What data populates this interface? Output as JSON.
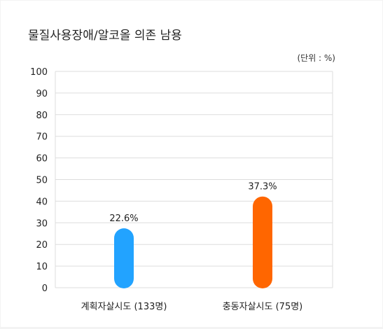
{
  "chart_data": {
    "type": "bar",
    "title": "물질사용장애/알코올 의존 남용",
    "unit_label": "(단위 : %)",
    "categories": [
      "계획자살시도 (133명)",
      "충동자살시도 (75명)"
    ],
    "values": [
      22.6,
      37.3
    ],
    "data_labels": [
      "22.6%",
      "37.3%"
    ],
    "colors": [
      "#22a3ff",
      "#ff6600"
    ],
    "ylim": [
      0,
      100
    ],
    "yticks": [
      0,
      10,
      20,
      30,
      40,
      50,
      60,
      70,
      80,
      90,
      100
    ],
    "grid": true,
    "xlabel": "",
    "ylabel": ""
  }
}
